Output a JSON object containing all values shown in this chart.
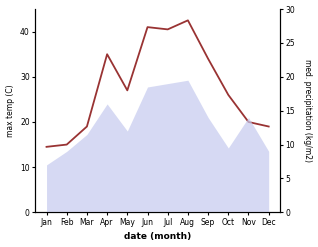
{
  "months": [
    "Jan",
    "Feb",
    "Mar",
    "Apr",
    "May",
    "Jun",
    "Jul",
    "Aug",
    "Sep",
    "Oct",
    "Nov",
    "Dec"
  ],
  "temp_line": [
    14.5,
    15.0,
    19.0,
    35.0,
    27.0,
    41.0,
    40.5,
    42.5,
    34.0,
    26.0,
    20.0,
    19.0
  ],
  "precipitation": [
    7.0,
    9.0,
    11.5,
    16.0,
    12.0,
    18.5,
    19.0,
    19.5,
    14.0,
    9.5,
    14.0,
    9.0
  ],
  "temp_line_color": "#993333",
  "fill_color": "#c5caee",
  "fill_alpha": 0.7,
  "ylabel_left": "max temp (C)",
  "ylabel_right": "med. precipitation (kg/m2)",
  "xlabel": "date (month)",
  "ylim_left": [
    0,
    45
  ],
  "ylim_right": [
    0,
    30
  ],
  "yticks_left": [
    0,
    10,
    20,
    30,
    40
  ],
  "yticks_right": [
    0,
    5,
    10,
    15,
    20,
    25,
    30
  ],
  "figwidth": 3.18,
  "figheight": 2.47,
  "dpi": 100
}
